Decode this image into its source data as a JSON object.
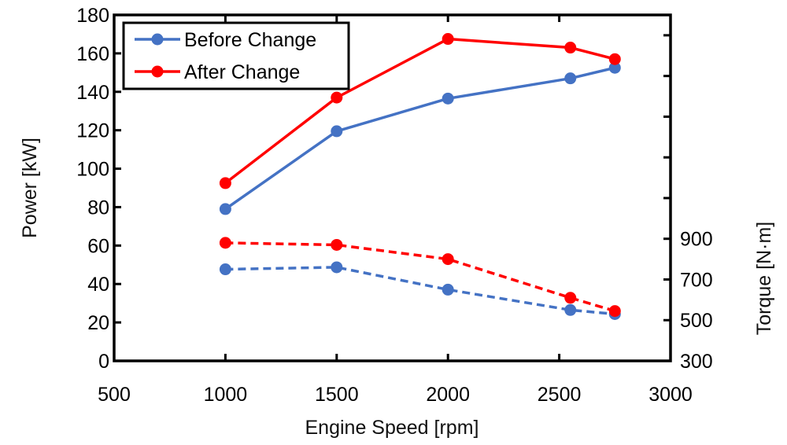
{
  "chart_data": {
    "type": "line",
    "title": "",
    "xlabel": "Engine Speed [rpm]",
    "ylabel": "Power [kW]",
    "y2label": "Torque [N·m]",
    "xlim": [
      500,
      3000
    ],
    "ylim": [
      0,
      180
    ],
    "y2lim": [
      300,
      2000
    ],
    "xticks": [
      500,
      1000,
      1500,
      2000,
      2500,
      3000
    ],
    "xtick_labels": [
      "500",
      "1000",
      "1500",
      "2000",
      "2500",
      "3000"
    ],
    "yticks": [
      0,
      20,
      40,
      60,
      80,
      100,
      120,
      140,
      160,
      180
    ],
    "ytick_labels": [
      "0",
      "20",
      "40",
      "60",
      "80",
      "100",
      "120",
      "140",
      "160",
      "180"
    ],
    "y2ticks": [
      300,
      500,
      700,
      900,
      1100,
      1300,
      1500,
      1700,
      1900
    ],
    "y2tick_labels": [
      "300",
      "500",
      "700",
      "900",
      "",
      "",
      "",
      "",
      ""
    ],
    "grid": false,
    "legend_position": "top-left",
    "legend": [
      {
        "label": "Before Change",
        "color": "#4472C4"
      },
      {
        "label": "After Change",
        "color": "#FF0000"
      }
    ],
    "series": [
      {
        "name": "Before Change",
        "quantity": "power",
        "axis": "left",
        "style": "solid",
        "color": "#4472C4",
        "x": [
          1000,
          1500,
          2000,
          2550,
          2750
        ],
        "values": [
          79,
          119.5,
          136.5,
          147,
          152.5
        ]
      },
      {
        "name": "After Change",
        "quantity": "power",
        "axis": "left",
        "style": "solid",
        "color": "#FF0000",
        "x": [
          1000,
          1500,
          2000,
          2550,
          2750
        ],
        "values": [
          92.5,
          137,
          167.5,
          163,
          157
        ]
      },
      {
        "name": "Before Change",
        "quantity": "torque",
        "axis": "right",
        "style": "dashed",
        "color": "#4472C4",
        "x": [
          1000,
          1500,
          2000,
          2550,
          2750
        ],
        "values": [
          750,
          760,
          650,
          550,
          530
        ]
      },
      {
        "name": "After Change",
        "quantity": "torque",
        "axis": "right",
        "style": "dashed",
        "color": "#FF0000",
        "x": [
          1000,
          1500,
          2000,
          2550,
          2750
        ],
        "values": [
          880,
          870,
          800,
          610,
          545
        ]
      }
    ]
  }
}
